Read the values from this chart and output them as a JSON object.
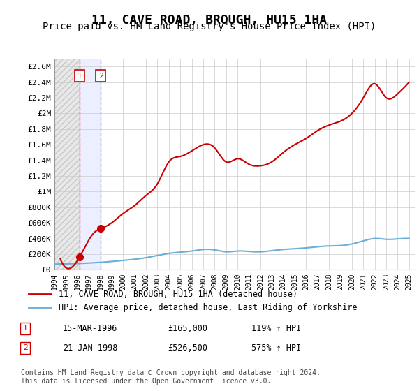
{
  "title": "11, CAVE ROAD, BROUGH, HU15 1HA",
  "subtitle": "Price paid vs. HM Land Registry's House Price Index (HPI)",
  "title_fontsize": 13,
  "subtitle_fontsize": 10,
  "ylim": [
    0,
    2700000
  ],
  "yticks": [
    0,
    200000,
    400000,
    600000,
    800000,
    1000000,
    1200000,
    1400000,
    1600000,
    1800000,
    2000000,
    2200000,
    2400000,
    2600000
  ],
  "ytick_labels": [
    "£0",
    "£200K",
    "£400K",
    "£600K",
    "£800K",
    "£1M",
    "£1.2M",
    "£1.4M",
    "£1.6M",
    "£1.8M",
    "£2M",
    "£2.2M",
    "£2.4M",
    "£2.6M"
  ],
  "xlim_start": 1994.0,
  "xlim_end": 2025.5,
  "xtick_years": [
    1994,
    1995,
    1996,
    1997,
    1998,
    1999,
    2000,
    2001,
    2002,
    2003,
    2004,
    2005,
    2006,
    2007,
    2008,
    2009,
    2010,
    2011,
    2012,
    2013,
    2014,
    2015,
    2016,
    2017,
    2018,
    2019,
    2020,
    2021,
    2022,
    2023,
    2024,
    2025
  ],
  "sale1_x": 1996.2,
  "sale1_y": 165000,
  "sale1_label": "1",
  "sale1_date": "15-MAR-1996",
  "sale1_price": "£165,000",
  "sale1_hpi": "119% ↑ HPI",
  "sale2_x": 1998.05,
  "sale2_y": 526500,
  "sale2_label": "2",
  "sale2_date": "21-JAN-1998",
  "sale2_price": "£526,500",
  "sale2_hpi": "575% ↑ HPI",
  "hpi_color": "#6baed6",
  "price_paid_color": "#cc0000",
  "sale_marker_color": "#cc0000",
  "legend_label_price": "11, CAVE ROAD, BROUGH, HU15 1HA (detached house)",
  "legend_label_hpi": "HPI: Average price, detached house, East Riding of Yorkshire",
  "footer": "Contains HM Land Registry data © Crown copyright and database right 2024.\nThis data is licensed under the Open Government Licence v3.0.",
  "bg_color": "#ffffff",
  "grid_color": "#cccccc",
  "hatch_color": "#e8e8e8",
  "sale1_vline_color": "#ff6666",
  "sale2_vline_color": "#aaaaff",
  "sale2_fill_color": "#d0d8ff"
}
